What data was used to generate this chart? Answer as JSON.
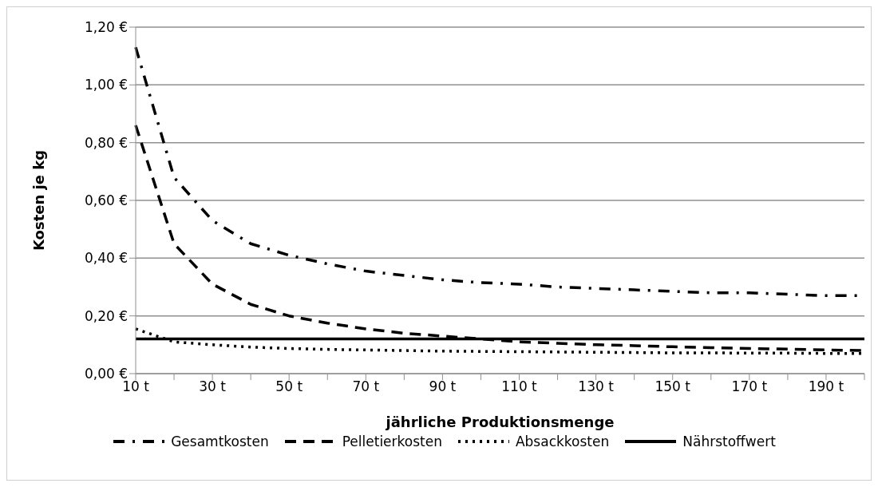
{
  "chart_data": {
    "type": "line",
    "xlabel": "jährliche Produktionsmenge",
    "ylabel": "Kosten je kg",
    "categories": [
      "10 t",
      null,
      "30 t",
      null,
      "50 t",
      null,
      "70 t",
      null,
      "90 t",
      null,
      "110 t",
      null,
      "130 t",
      null,
      "150 t",
      null,
      "170 t",
      null,
      "190 t",
      null
    ],
    "series": [
      {
        "name": "Gesamtkosten",
        "color": "#000000",
        "line_style": "dashdot",
        "values": [
          1.13,
          0.68,
          0.53,
          0.45,
          0.41,
          0.38,
          0.355,
          0.34,
          0.325,
          0.315,
          0.31,
          0.3,
          0.295,
          0.29,
          0.285,
          0.28,
          0.28,
          0.275,
          0.27,
          0.27
        ]
      },
      {
        "name": "Pelletierkosten",
        "color": "#000000",
        "line_style": "dashed",
        "values": [
          0.86,
          0.45,
          0.31,
          0.24,
          0.2,
          0.175,
          0.155,
          0.14,
          0.13,
          0.12,
          0.11,
          0.105,
          0.1,
          0.097,
          0.093,
          0.09,
          0.087,
          0.085,
          0.082,
          0.08
        ]
      },
      {
        "name": "Absackkosten",
        "color": "#000000",
        "line_style": "dotted",
        "values": [
          0.155,
          0.11,
          0.1,
          0.092,
          0.087,
          0.084,
          0.082,
          0.08,
          0.078,
          0.077,
          0.076,
          0.075,
          0.074,
          0.073,
          0.072,
          0.072,
          0.071,
          0.071,
          0.07,
          0.07
        ]
      },
      {
        "name": "Nährstoffwert",
        "color": "#000000",
        "line_style": "solid",
        "values": [
          0.12,
          0.12,
          0.12,
          0.12,
          0.12,
          0.12,
          0.12,
          0.12,
          0.12,
          0.12,
          0.12,
          0.12,
          0.12,
          0.12,
          0.12,
          0.12,
          0.12,
          0.12,
          0.12,
          0.12
        ]
      }
    ],
    "ylim": [
      0,
      1.2
    ],
    "yticks": [
      {
        "value": 0,
        "label": "0,00 €"
      },
      {
        "value": 0.2,
        "label": "0,20 €"
      },
      {
        "value": 0.4,
        "label": "0,40 €"
      },
      {
        "value": 0.6,
        "label": "0,60 €"
      },
      {
        "value": 0.8,
        "label": "0,80 €"
      },
      {
        "value": 1,
        "label": "1,00 €"
      },
      {
        "value": 1.2,
        "label": "1,20 €"
      }
    ],
    "grid": "y",
    "legend": "bottom",
    "marker": "none"
  }
}
